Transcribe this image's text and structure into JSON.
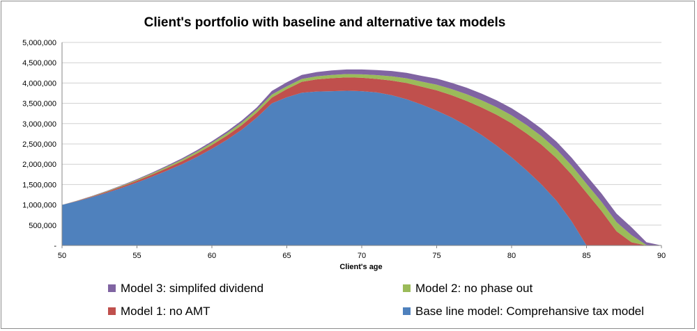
{
  "chart_data": {
    "type": "area",
    "stacked": true,
    "title": "Client's portfolio with baseline and alternative tax models",
    "xlabel": "Client's age",
    "ylabel": "",
    "xlim": [
      50,
      90
    ],
    "ylim": [
      0,
      5000000
    ],
    "xticks": [
      "50",
      "55",
      "60",
      "65",
      "70",
      "75",
      "80",
      "85",
      "90"
    ],
    "yticks": [
      "-",
      "500,000",
      "1,000,000",
      "1,500,000",
      "2,000,000",
      "2,500,000",
      "3,000,000",
      "3,500,000",
      "4,000,000",
      "4,500,000",
      "5,000,000"
    ],
    "grid": true,
    "legend_position": "bottom",
    "x": [
      50,
      51,
      52,
      53,
      54,
      55,
      56,
      57,
      58,
      59,
      60,
      61,
      62,
      63,
      64,
      65,
      66,
      67,
      68,
      69,
      70,
      71,
      72,
      73,
      74,
      75,
      76,
      77,
      78,
      79,
      80,
      81,
      82,
      83,
      84,
      85,
      86,
      87,
      88,
      89,
      90
    ],
    "series": [
      {
        "name": "Base line model: Comprehansive tax model",
        "color": "#4f81bd",
        "values": [
          1000000,
          1090000,
          1190000,
          1300000,
          1420000,
          1550000,
          1690000,
          1840000,
          2000000,
          2180000,
          2380000,
          2600000,
          2850000,
          3150000,
          3500000,
          3650000,
          3760000,
          3790000,
          3800000,
          3810000,
          3800000,
          3770000,
          3700000,
          3600000,
          3470000,
          3320000,
          3150000,
          2950000,
          2720000,
          2460000,
          2170000,
          1850000,
          1500000,
          1100000,
          600000,
          0,
          0,
          0,
          0,
          0,
          0
        ]
      },
      {
        "name": "Model 1: no AMT",
        "color": "#c0504d",
        "values": [
          0,
          8000,
          16000,
          25000,
          35000,
          45000,
          55000,
          65000,
          75000,
          85000,
          95000,
          105000,
          115000,
          125000,
          140000,
          200000,
          270000,
          300000,
          320000,
          330000,
          330000,
          330000,
          360000,
          400000,
          440000,
          500000,
          550000,
          610000,
          680000,
          760000,
          840000,
          910000,
          980000,
          1050000,
          1150000,
          1300000,
          850000,
          350000,
          80000,
          0,
          0
        ]
      },
      {
        "name": "Model 2: no phase out",
        "color": "#9bbb59",
        "values": [
          0,
          4000,
          8000,
          12000,
          17000,
          22000,
          28000,
          34000,
          40000,
          46000,
          52000,
          58000,
          64000,
          70000,
          75000,
          70000,
          70000,
          75000,
          80000,
          80000,
          85000,
          95000,
          105000,
          115000,
          125000,
          140000,
          150000,
          165000,
          175000,
          185000,
          195000,
          205000,
          210000,
          215000,
          220000,
          220000,
          225000,
          225000,
          175000,
          10000,
          0
        ]
      },
      {
        "name": "Model 3: simplifed dividend",
        "color": "#8064a2",
        "values": [
          0,
          3000,
          6000,
          9000,
          13000,
          17000,
          21000,
          25000,
          30000,
          35000,
          40000,
          45000,
          50000,
          55000,
          90000,
          100000,
          100000,
          105000,
          110000,
          115000,
          120000,
          125000,
          130000,
          135000,
          140000,
          150000,
          155000,
          160000,
          165000,
          170000,
          175000,
          180000,
          185000,
          190000,
          195000,
          200000,
          205000,
          210000,
          195000,
          70000,
          0
        ]
      }
    ],
    "legend": [
      {
        "label": "Model 3: simplifed dividend",
        "color": "#8064a2"
      },
      {
        "label": "Model 2: no phase out",
        "color": "#9bbb59"
      },
      {
        "label": "Model 1: no AMT",
        "color": "#c0504d"
      },
      {
        "label": "Base line model: Comprehansive tax model",
        "color": "#4f81bd"
      }
    ]
  }
}
